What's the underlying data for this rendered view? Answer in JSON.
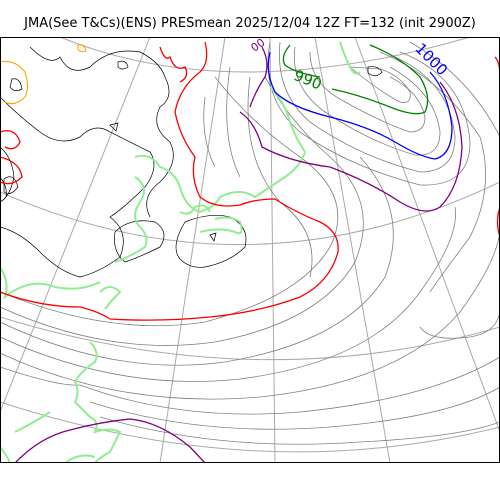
{
  "title": "JMA(See T&Cs)(ENS) PRESmean 2025/12/04 12Z FT=132 (init 2900Z)",
  "contour_labels": {
    "c990": "990",
    "c1000": "1000"
  },
  "colors": {
    "coastline": "#000000",
    "isobar": "#808080",
    "grid": "#a9a9a9",
    "ensemble_spread": "#90ee90",
    "red_contour": "#ff0000",
    "blue_contour": "#0000ff",
    "green_contour": "#008000",
    "purple_contour": "#800080",
    "orange_contour": "#ffa500"
  }
}
